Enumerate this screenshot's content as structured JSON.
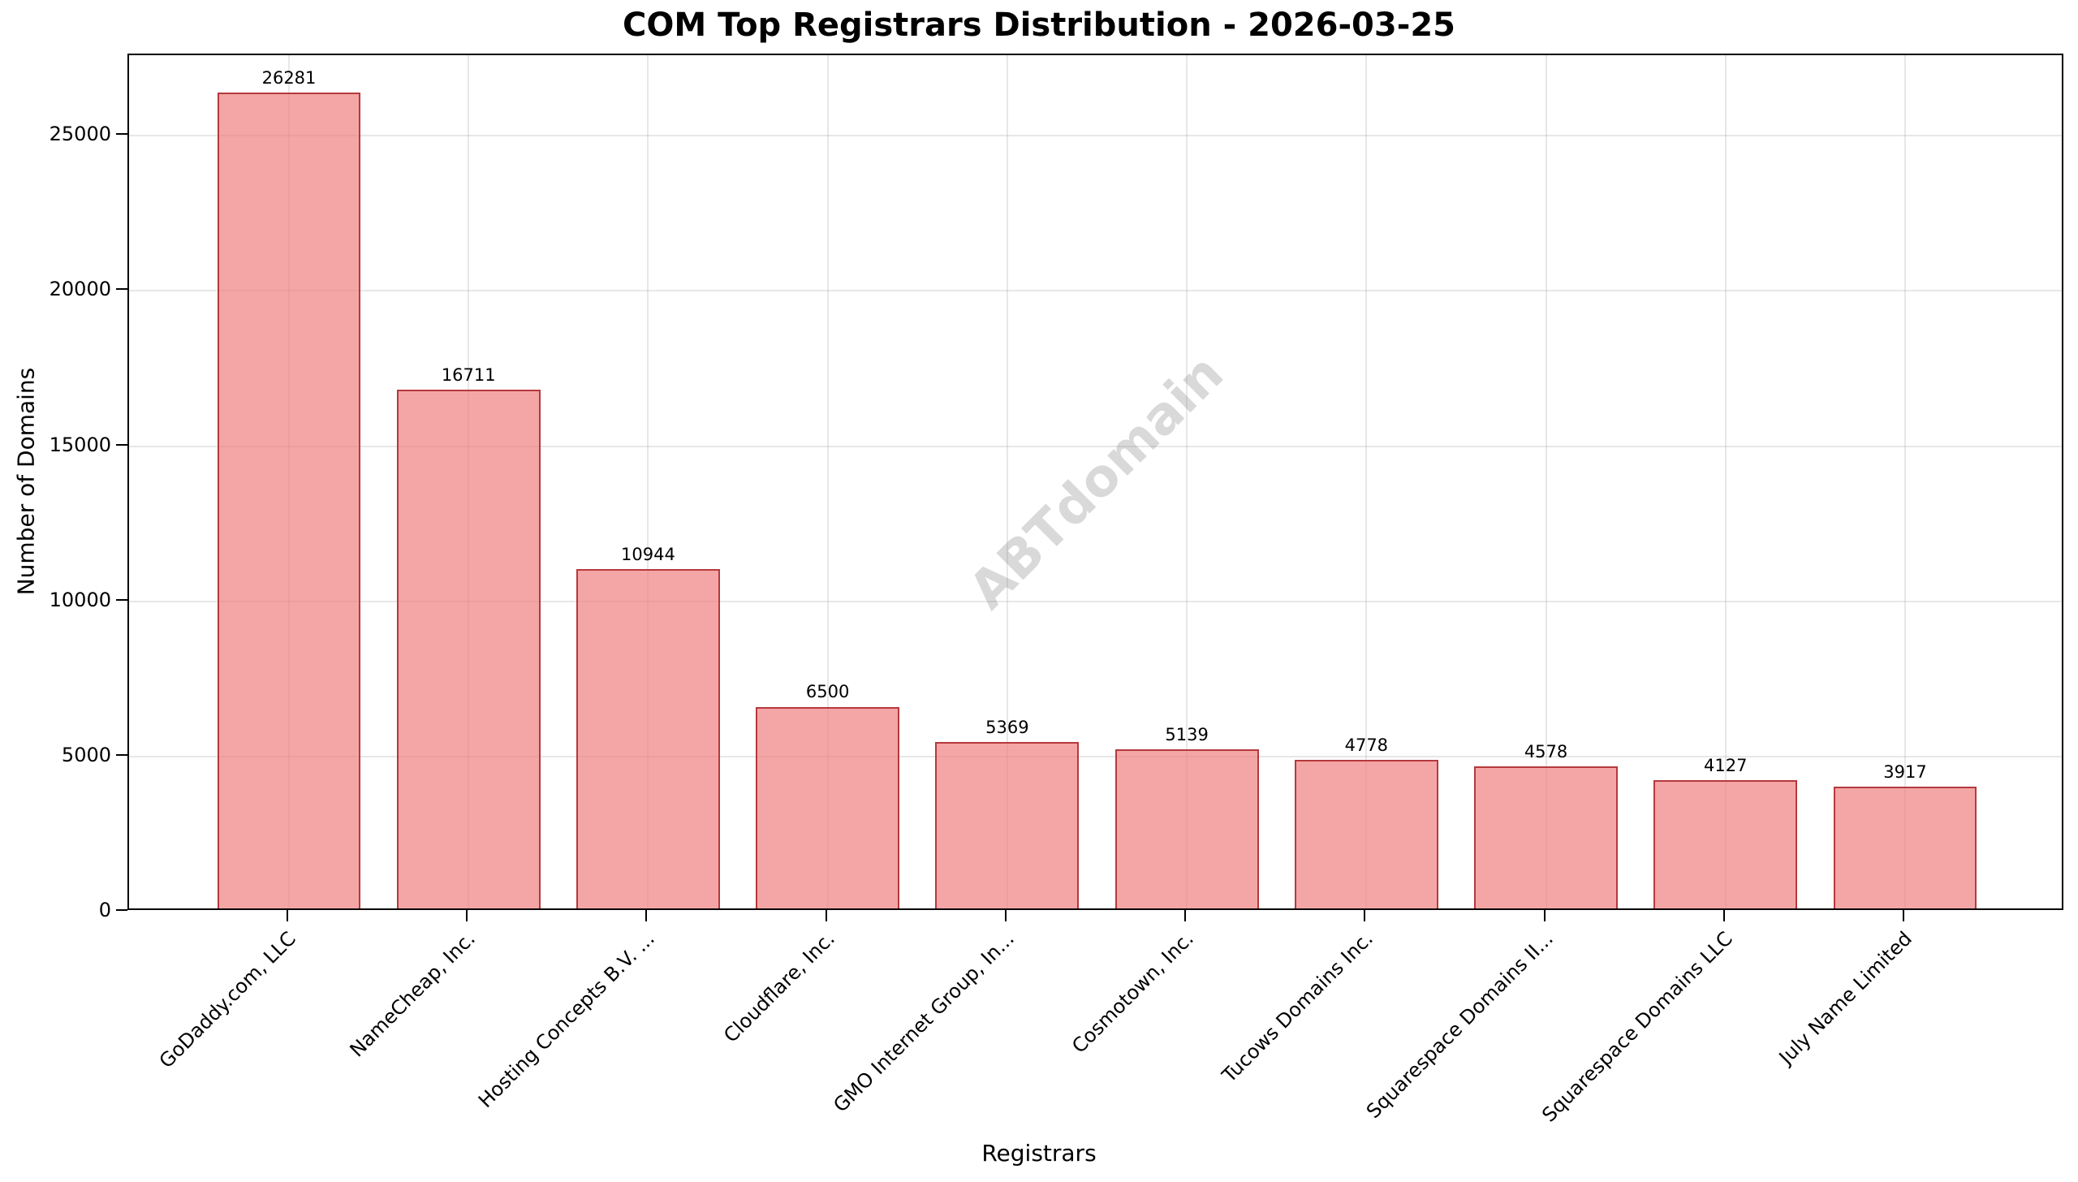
{
  "chart_data": {
    "type": "bar",
    "title": "COM Top Registrars Distribution - 2026-03-25",
    "xlabel": "Registrars",
    "ylabel": "Number of Domains",
    "categories": [
      "GoDaddy.com, LLC",
      "NameCheap, Inc.",
      "Hosting Concepts B.V. ...",
      "Cloudflare, Inc.",
      "GMO Internet Group, In...",
      "Cosmotown, Inc.",
      "Tucows Domains Inc.",
      "Squarespace Domains II...",
      "Squarespace Domains LLC",
      "July Name Limited"
    ],
    "values": [
      26281,
      16711,
      10944,
      6500,
      5369,
      5139,
      4778,
      4578,
      4127,
      3917
    ],
    "value_labels": [
      "26281",
      "16711",
      "10944",
      "6500",
      "5369",
      "5139",
      "4778",
      "4578",
      "4127",
      "3917"
    ],
    "ylim": [
      0,
      27595
    ],
    "yticks": [
      0,
      5000,
      10000,
      15000,
      20000,
      25000
    ],
    "ytick_labels": [
      "0",
      "5000",
      "10000",
      "15000",
      "20000",
      "25000"
    ],
    "grid": true,
    "legend": null,
    "xtick_rotation": 45,
    "bar_color": "#f08080",
    "bar_edge_color": "#a51e23",
    "watermark": "ABTdomain"
  }
}
